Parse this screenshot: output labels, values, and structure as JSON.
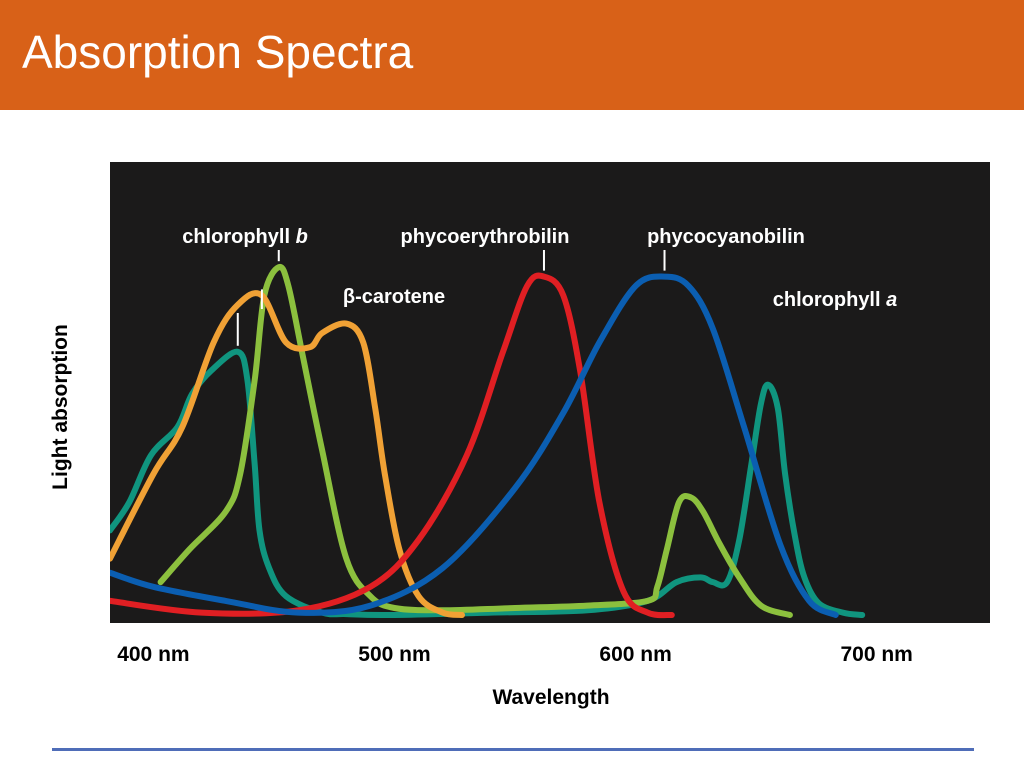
{
  "slide": {
    "title": "Absorption Spectra"
  },
  "colors": {
    "header_bg": "#d86118",
    "plot_bg": "#1b1a1a",
    "rule": "#4f6db8"
  },
  "chart_data": {
    "type": "line",
    "xlabel": "Wavelength",
    "ylabel": "Light absorption",
    "xlim": [
      382,
      747
    ],
    "ylim": [
      0,
      1.0
    ],
    "xticks": [
      {
        "value": 400,
        "label": "400 nm"
      },
      {
        "value": 500,
        "label": "500 nm"
      },
      {
        "value": 600,
        "label": "600 nm"
      },
      {
        "value": 700,
        "label": "700 nm"
      }
    ],
    "grid": false,
    "series": [
      {
        "name": "chlorophyll a",
        "color": "#10957f",
        "x": [
          382,
          390,
          399,
          410,
          416,
          424,
          435,
          439,
          442,
          444,
          448,
          455,
          470,
          480,
          500,
          540,
          580,
          605,
          617,
          627,
          632,
          638,
          643,
          648,
          652,
          655,
          659,
          662,
          666,
          670,
          676,
          686,
          694
        ],
        "y": [
          0.18,
          0.24,
          0.34,
          0.4,
          0.47,
          0.52,
          0.56,
          0.5,
          0.32,
          0.18,
          0.1,
          0.04,
          0.005,
          0.002,
          0.0,
          0.005,
          0.01,
          0.03,
          0.07,
          0.08,
          0.07,
          0.07,
          0.16,
          0.32,
          0.45,
          0.49,
          0.44,
          0.3,
          0.17,
          0.08,
          0.025,
          0.005,
          0.0
        ]
      },
      {
        "name": "chlorophyll b",
        "color": "#8cc03e",
        "x": [
          403,
          415,
          430,
          436,
          442,
          446,
          452,
          456,
          462,
          470,
          480,
          490,
          500,
          520,
          550,
          580,
          605,
          609,
          613,
          618,
          623,
          628,
          635,
          643,
          652,
          664
        ],
        "y": [
          0.07,
          0.14,
          0.22,
          0.3,
          0.5,
          0.68,
          0.74,
          0.7,
          0.55,
          0.35,
          0.12,
          0.04,
          0.015,
          0.01,
          0.015,
          0.02,
          0.03,
          0.06,
          0.14,
          0.24,
          0.25,
          0.22,
          0.15,
          0.08,
          0.02,
          0.0
        ]
      },
      {
        "name": "β-carotene",
        "color": "#f0a135",
        "x": [
          382,
          400,
          412,
          425,
          435,
          445,
          455,
          465,
          470,
          480,
          487,
          492,
          496,
          502,
          510,
          520,
          528
        ],
        "y": [
          0.12,
          0.3,
          0.4,
          0.58,
          0.66,
          0.68,
          0.58,
          0.57,
          0.6,
          0.62,
          0.58,
          0.44,
          0.3,
          0.14,
          0.04,
          0.005,
          0.0
        ]
      },
      {
        "name": "phycoerythrobilin",
        "color": "#e01f23",
        "x": [
          382,
          420,
          460,
          490,
          510,
          530,
          545,
          555,
          562,
          570,
          577,
          585,
          595,
          605,
          615
        ],
        "y": [
          0.03,
          0.005,
          0.01,
          0.06,
          0.16,
          0.34,
          0.56,
          0.7,
          0.72,
          0.68,
          0.52,
          0.24,
          0.05,
          0.005,
          0.0
        ]
      },
      {
        "name": "phycocyanobilin",
        "color": "#0b5eb1",
        "x": [
          382,
          400,
          430,
          460,
          490,
          520,
          550,
          570,
          585,
          600,
          612,
          622,
          632,
          645,
          660,
          672,
          683
        ],
        "y": [
          0.09,
          0.06,
          0.03,
          0.005,
          0.02,
          0.1,
          0.27,
          0.43,
          0.58,
          0.7,
          0.72,
          0.7,
          0.61,
          0.4,
          0.15,
          0.03,
          0.0
        ]
      }
    ],
    "annotations": [
      {
        "text": "chlorophyll ",
        "em": "b",
        "series": "chlorophyll b"
      },
      {
        "text": "β-carotene",
        "em": "",
        "series": "β-carotene"
      },
      {
        "text": "phycoerythrobilin",
        "em": "",
        "series": "phycoerythrobilin"
      },
      {
        "text": "phycocyanobilin",
        "em": "",
        "series": "phycocyanobilin"
      },
      {
        "text": "chlorophyll ",
        "em": "a",
        "series": "chlorophyll a"
      }
    ]
  }
}
